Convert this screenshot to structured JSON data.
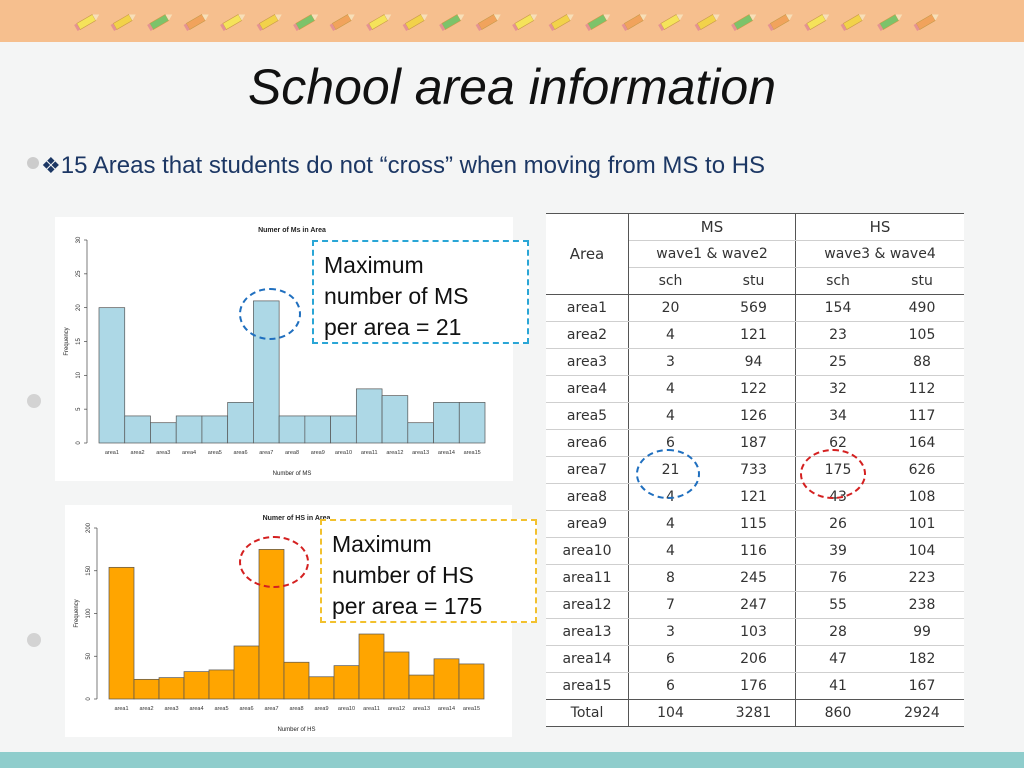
{
  "slide": {
    "title": "School area information",
    "bullet_mark": "❖",
    "bullet_text": "15 Areas that students do not “cross” when moving from MS to HS"
  },
  "callouts": {
    "ms": [
      "Maximum",
      "number of MS",
      "per area = 21"
    ],
    "hs": [
      "Maximum",
      "number of HS",
      "per area = 175"
    ]
  },
  "colors": {
    "top_bar": "#f6bf8e",
    "bottom_bar": "#8fcdcc",
    "ms_bars": "#add8e6",
    "hs_bars": "#ffa500",
    "ms_highlight": "#1f6fbf",
    "hs_highlight": "#d42020",
    "ms_callout_border": "#2aa6d6",
    "hs_callout_border": "#f2c12e"
  },
  "chart_data": [
    {
      "type": "bar",
      "title": "Numer of Ms in Area",
      "xlabel": "Number of MS",
      "ylabel": "Frequency",
      "categories": [
        "area1",
        "area2",
        "area3",
        "area4",
        "area5",
        "area6",
        "area7",
        "area8",
        "area9",
        "area10",
        "area11",
        "area12",
        "area13",
        "area14",
        "area15"
      ],
      "values": [
        20,
        4,
        3,
        4,
        4,
        6,
        21,
        4,
        4,
        4,
        8,
        7,
        3,
        6,
        6
      ],
      "ylim": [
        0,
        30
      ],
      "yticks": [
        "0",
        "5",
        "10",
        "15",
        "20",
        "25",
        "30"
      ],
      "highlight_index": 6
    },
    {
      "type": "bar",
      "title": "Numer of HS in Area",
      "xlabel": "Number of HS",
      "ylabel": "Frequency",
      "categories": [
        "area1",
        "area2",
        "area3",
        "area4",
        "area5",
        "area6",
        "area7",
        "area8",
        "area9",
        "area10",
        "area11",
        "area12",
        "area13",
        "area14",
        "area15"
      ],
      "values": [
        154,
        23,
        25,
        32,
        34,
        62,
        175,
        43,
        26,
        39,
        76,
        55,
        28,
        47,
        41
      ],
      "ylim": [
        0,
        200
      ],
      "yticks": [
        "0",
        "50",
        "100",
        "150",
        "200"
      ],
      "highlight_index": 6
    }
  ],
  "table": {
    "area_header": "Area",
    "ms_header": "MS",
    "hs_header": "HS",
    "ms_wave": "wave1 & wave2",
    "hs_wave": "wave3 & wave4",
    "sub_headers": [
      "sch",
      "stu",
      "sch",
      "stu"
    ],
    "rows": [
      [
        "area1",
        "20",
        "569",
        "154",
        "490"
      ],
      [
        "area2",
        "4",
        "121",
        "23",
        "105"
      ],
      [
        "area3",
        "3",
        "94",
        "25",
        "88"
      ],
      [
        "area4",
        "4",
        "122",
        "32",
        "112"
      ],
      [
        "area5",
        "4",
        "126",
        "34",
        "117"
      ],
      [
        "area6",
        "6",
        "187",
        "62",
        "164"
      ],
      [
        "area7",
        "21",
        "733",
        "175",
        "626"
      ],
      [
        "area8",
        "4",
        "121",
        "43",
        "108"
      ],
      [
        "area9",
        "4",
        "115",
        "26",
        "101"
      ],
      [
        "area10",
        "4",
        "116",
        "39",
        "104"
      ],
      [
        "area11",
        "8",
        "245",
        "76",
        "223"
      ],
      [
        "area12",
        "7",
        "247",
        "55",
        "238"
      ],
      [
        "area13",
        "3",
        "103",
        "28",
        "99"
      ],
      [
        "area14",
        "6",
        "206",
        "47",
        "182"
      ],
      [
        "area15",
        "6",
        "176",
        "41",
        "167"
      ]
    ],
    "total": [
      "Total",
      "104",
      "3281",
      "860",
      "2924"
    ]
  }
}
